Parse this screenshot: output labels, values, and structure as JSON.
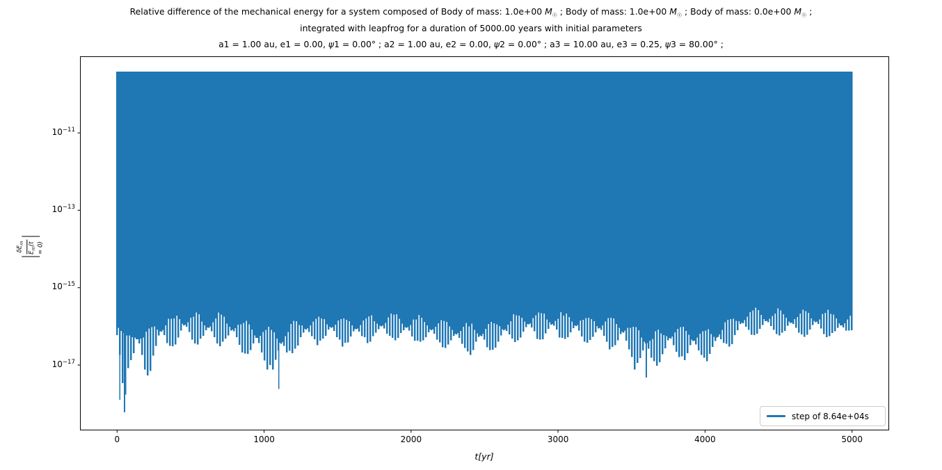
{
  "figure": {
    "title_lines": [
      "Relative difference of the mechanical energy for a system composed of Body of mass: 1.0e+00 M☉ ; Body of mass: 1.0e+00 M☉ ; Body of mass: 0.0e+00 M☉ ;",
      "integrated with leapfrog for a duration of 5000.00 years with initial parameters",
      "a1 = 1.00 au, e1 = 0.00, ψ1 = 0.00° ; a2 = 1.00 au, e2 = 0.00, ψ2 = 0.00° ; a3 = 10.00 au, e3 = 0.25, ψ3 = 80.00° ;"
    ],
    "xlabel": "t[yr]",
    "ylabel_numerator": "δE_m",
    "ylabel_denominator": "E_m(t = 0)",
    "legend": {
      "label": "step of 8.64e+04s"
    },
    "colors": {
      "series": "#1f77b4",
      "spine": "#000000",
      "legend_border": "#cccccc",
      "text": "#000000",
      "background": "#ffffff"
    }
  },
  "chart_data": {
    "type": "line",
    "title": "Relative difference of the mechanical energy for a system composed of Body of mass: 1.0e+00 M☉ ; Body of mass: 1.0e+00 M☉ ; Body of mass: 0.0e+00 M☉ ; integrated with leapfrog for a duration of 5000.00 years with initial parameters a1 = 1.00 au, e1 = 0.00, ψ1 = 0.00° ; a2 = 1.00 au, e2 = 0.00, ψ2 = 0.00° ; a3 = 10.00 au, e3 = 0.25, ψ3 = 80.00° ;",
    "xlabel": "t[yr]",
    "ylabel": "|δE_m / E_m(t=0)|",
    "x_axis_unit": "years",
    "y_scale": "log10",
    "xlim": [
      -250,
      5250
    ],
    "ylim_log10": [
      -18.68,
      -9.03
    ],
    "xticks": [
      0,
      1000,
      2000,
      3000,
      4000,
      5000
    ],
    "yticks_log10": [
      -11,
      -13,
      -15,
      -17
    ],
    "grid": false,
    "legend_position": "lower right",
    "series": [
      {
        "name": "step of 8.64e+04s",
        "color": "#1f77b4",
        "t_range_yr": [
          0,
          5000
        ],
        "description": "dense oscillating relative-energy error; every oscillation spans from the lower envelope up to a flat upper envelope",
        "upper_envelope_log10": -9.42,
        "baseline_log10": [
          [
            0,
            -16.1
          ],
          [
            40,
            -16.45
          ],
          [
            80,
            -16.5
          ],
          [
            130,
            -16.3
          ],
          [
            180,
            -16.45
          ],
          [
            230,
            -16.35
          ],
          [
            280,
            -16.15
          ],
          [
            340,
            -16.1
          ],
          [
            420,
            -15.98
          ],
          [
            500,
            -15.95
          ],
          [
            600,
            -16.05
          ],
          [
            700,
            -16.0
          ],
          [
            800,
            -16.1
          ],
          [
            900,
            -16.2
          ],
          [
            980,
            -16.35
          ],
          [
            1060,
            -16.4
          ],
          [
            1120,
            -16.45
          ],
          [
            1180,
            -16.25
          ],
          [
            1260,
            -16.1
          ],
          [
            1400,
            -16.0
          ],
          [
            1550,
            -16.1
          ],
          [
            1700,
            -16.05
          ],
          [
            1850,
            -15.98
          ],
          [
            2000,
            -16.05
          ],
          [
            2150,
            -16.1
          ],
          [
            2300,
            -16.2
          ],
          [
            2430,
            -16.25
          ],
          [
            2550,
            -16.2
          ],
          [
            2700,
            -16.0
          ],
          [
            2850,
            -15.92
          ],
          [
            3000,
            -15.95
          ],
          [
            3150,
            -16.0
          ],
          [
            3300,
            -16.05
          ],
          [
            3450,
            -16.15
          ],
          [
            3560,
            -16.4
          ],
          [
            3650,
            -16.5
          ],
          [
            3760,
            -16.3
          ],
          [
            3870,
            -16.35
          ],
          [
            3960,
            -16.4
          ],
          [
            4060,
            -16.35
          ],
          [
            4150,
            -16.1
          ],
          [
            4250,
            -15.9
          ],
          [
            4400,
            -15.85
          ],
          [
            4550,
            -15.92
          ],
          [
            4700,
            -15.88
          ],
          [
            4850,
            -15.9
          ],
          [
            4950,
            -16.0
          ],
          [
            5000,
            -15.95
          ]
        ],
        "spike_envelope_log10": [
          [
            0,
            -16.9
          ],
          [
            25,
            -17.6
          ],
          [
            50,
            -18.2
          ],
          [
            75,
            -17.2
          ],
          [
            110,
            -17.5
          ],
          [
            150,
            -17.15
          ],
          [
            200,
            -17.5
          ],
          [
            250,
            -16.95
          ],
          [
            300,
            -16.7
          ],
          [
            400,
            -16.6
          ],
          [
            500,
            -16.55
          ],
          [
            600,
            -16.5
          ],
          [
            700,
            -16.55
          ],
          [
            800,
            -16.65
          ],
          [
            900,
            -16.85
          ],
          [
            970,
            -17.25
          ],
          [
            1050,
            -17.2
          ],
          [
            1100,
            -17.6
          ],
          [
            1160,
            -17.0
          ],
          [
            1250,
            -16.55
          ],
          [
            1400,
            -16.5
          ],
          [
            1550,
            -16.55
          ],
          [
            1700,
            -16.45
          ],
          [
            1850,
            -16.4
          ],
          [
            2000,
            -16.5
          ],
          [
            2150,
            -16.55
          ],
          [
            2300,
            -16.65
          ],
          [
            2430,
            -16.8
          ],
          [
            2550,
            -16.7
          ],
          [
            2700,
            -16.5
          ],
          [
            2850,
            -16.4
          ],
          [
            3000,
            -16.42
          ],
          [
            3150,
            -16.48
          ],
          [
            3300,
            -16.55
          ],
          [
            3450,
            -16.9
          ],
          [
            3570,
            -17.3
          ],
          [
            3650,
            -17.15
          ],
          [
            3760,
            -16.85
          ],
          [
            3880,
            -17.0
          ],
          [
            3970,
            -16.95
          ],
          [
            4060,
            -16.9
          ],
          [
            4150,
            -16.6
          ],
          [
            4250,
            -16.3
          ],
          [
            4400,
            -16.25
          ],
          [
            4550,
            -16.3
          ],
          [
            4700,
            -16.28
          ],
          [
            4850,
            -16.32
          ],
          [
            4950,
            -16.35
          ],
          [
            5000,
            -16.1
          ]
        ],
        "singular_spikes_log10": [
          [
            18,
            -17.9
          ],
          [
            50,
            -18.22
          ],
          [
            1100,
            -17.62
          ],
          [
            3600,
            -17.32
          ]
        ],
        "comb": {
          "period_yr": 165,
          "up_decades": 0.38,
          "sharpness": 1.6
        }
      }
    ]
  }
}
